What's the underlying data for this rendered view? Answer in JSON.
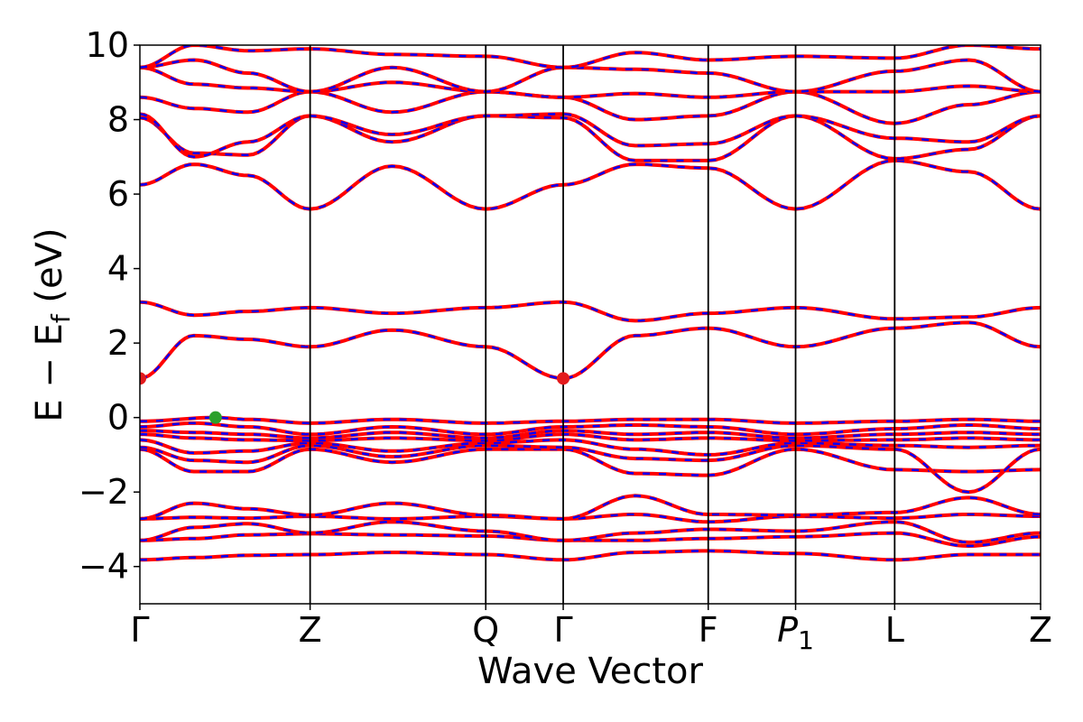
{
  "chart_data": {
    "type": "line",
    "title": "",
    "xlabel": "Wave Vector",
    "ylabel": "E − E_f (eV)",
    "ylabel_parts": {
      "main": "E − E",
      "sub": "f",
      "unit": " (eV)"
    },
    "ylim": [
      -5,
      10
    ],
    "yticks": [
      -4,
      -2,
      0,
      2,
      4,
      6,
      8,
      10
    ],
    "ytick_labels": [
      "−4",
      "−2",
      "0",
      "2",
      "4",
      "6",
      "8",
      "10"
    ],
    "grid": false,
    "legend": "none",
    "kpath": [
      {
        "label": "Γ",
        "x": 0.0
      },
      {
        "label": "Z",
        "x": 0.189
      },
      {
        "label": "Q",
        "x": 0.384
      },
      {
        "label": "Γ",
        "x": 0.47
      },
      {
        "label": "F",
        "x": 0.631
      },
      {
        "label": "P",
        "sub": "1",
        "x": 0.728
      },
      {
        "label": "L",
        "x": 0.838
      },
      {
        "label": "Z",
        "x": 1.0
      }
    ],
    "colors": {
      "band_outer": "#ff0000",
      "band_inner": "#0000ff",
      "cbm_marker": "#e31a1c",
      "vbm_marker": "#2ca02c",
      "frame": "#000000"
    },
    "markers": [
      {
        "name": "cbm",
        "x": 0.0,
        "y": 1.05,
        "color": "#e31a1c"
      },
      {
        "name": "cbm",
        "x": 0.47,
        "y": 1.05,
        "color": "#e31a1c"
      },
      {
        "name": "vbm",
        "x": 0.084,
        "y": 0.0,
        "color": "#2ca02c"
      }
    ],
    "series": [
      {
        "values": [
          [
            0,
            -3.82
          ],
          [
            0.06,
            -3.76
          ],
          [
            0.12,
            -3.7
          ],
          [
            0.189,
            -3.68
          ],
          [
            0.28,
            -3.62
          ],
          [
            0.384,
            -3.68
          ],
          [
            0.47,
            -3.82
          ],
          [
            0.55,
            -3.62
          ],
          [
            0.631,
            -3.58
          ],
          [
            0.728,
            -3.65
          ],
          [
            0.838,
            -3.82
          ],
          [
            0.92,
            -3.68
          ],
          [
            1.0,
            -3.68
          ]
        ]
      },
      {
        "values": [
          [
            0,
            -3.3
          ],
          [
            0.06,
            -3.25
          ],
          [
            0.12,
            -3.15
          ],
          [
            0.189,
            -3.12
          ],
          [
            0.28,
            -3.15
          ],
          [
            0.384,
            -3.18
          ],
          [
            0.47,
            -3.3
          ],
          [
            0.55,
            -3.3
          ],
          [
            0.631,
            -3.25
          ],
          [
            0.728,
            -3.2
          ],
          [
            0.838,
            -3.1
          ],
          [
            0.92,
            -3.45
          ],
          [
            1.0,
            -3.2
          ]
        ]
      },
      {
        "values": [
          [
            0,
            -3.3
          ],
          [
            0.06,
            -2.95
          ],
          [
            0.12,
            -2.85
          ],
          [
            0.189,
            -3.1
          ],
          [
            0.28,
            -2.8
          ],
          [
            0.384,
            -3.05
          ],
          [
            0.47,
            -3.3
          ],
          [
            0.55,
            -3.1
          ],
          [
            0.631,
            -3.0
          ],
          [
            0.728,
            -3.05
          ],
          [
            0.838,
            -2.8
          ],
          [
            0.92,
            -3.35
          ],
          [
            1.0,
            -3.1
          ]
        ]
      },
      {
        "values": [
          [
            0,
            -2.72
          ],
          [
            0.06,
            -2.68
          ],
          [
            0.12,
            -2.7
          ],
          [
            0.189,
            -2.65
          ],
          [
            0.28,
            -2.72
          ],
          [
            0.384,
            -2.65
          ],
          [
            0.47,
            -2.72
          ],
          [
            0.55,
            -2.6
          ],
          [
            0.631,
            -2.8
          ],
          [
            0.728,
            -2.65
          ],
          [
            0.838,
            -2.7
          ],
          [
            0.92,
            -2.6
          ],
          [
            1.0,
            -2.65
          ]
        ]
      },
      {
        "values": [
          [
            0,
            -2.72
          ],
          [
            0.06,
            -2.3
          ],
          [
            0.12,
            -2.45
          ],
          [
            0.189,
            -2.62
          ],
          [
            0.28,
            -2.3
          ],
          [
            0.384,
            -2.62
          ],
          [
            0.47,
            -2.72
          ],
          [
            0.55,
            -2.1
          ],
          [
            0.631,
            -2.6
          ],
          [
            0.728,
            -2.62
          ],
          [
            0.838,
            -2.55
          ],
          [
            0.92,
            -2.15
          ],
          [
            1.0,
            -2.6
          ]
        ]
      },
      {
        "values": [
          [
            0,
            -0.85
          ],
          [
            0.06,
            -1.45
          ],
          [
            0.12,
            -1.45
          ],
          [
            0.189,
            -0.85
          ],
          [
            0.28,
            -1.2
          ],
          [
            0.384,
            -0.85
          ],
          [
            0.47,
            -0.85
          ],
          [
            0.55,
            -1.5
          ],
          [
            0.631,
            -1.55
          ],
          [
            0.728,
            -0.85
          ],
          [
            0.838,
            -1.4
          ],
          [
            0.92,
            -1.45
          ],
          [
            1.0,
            -1.4
          ]
        ]
      },
      {
        "values": [
          [
            0,
            -0.8
          ],
          [
            0.06,
            -1.15
          ],
          [
            0.12,
            -1.2
          ],
          [
            0.189,
            -0.75
          ],
          [
            0.28,
            -1.05
          ],
          [
            0.384,
            -0.75
          ],
          [
            0.47,
            -0.8
          ],
          [
            0.55,
            -1.1
          ],
          [
            0.631,
            -1.15
          ],
          [
            0.728,
            -0.75
          ],
          [
            0.838,
            -0.85
          ],
          [
            0.92,
            -2.0
          ],
          [
            1.0,
            -0.85
          ]
        ]
      },
      {
        "values": [
          [
            0,
            -0.6
          ],
          [
            0.06,
            -0.95
          ],
          [
            0.12,
            -0.9
          ],
          [
            0.189,
            -0.68
          ],
          [
            0.28,
            -0.9
          ],
          [
            0.384,
            -0.68
          ],
          [
            0.47,
            -0.6
          ],
          [
            0.55,
            -0.85
          ],
          [
            0.631,
            -1.0
          ],
          [
            0.728,
            -0.68
          ],
          [
            0.838,
            -0.75
          ],
          [
            0.92,
            -0.8
          ],
          [
            1.0,
            -0.75
          ]
        ]
      },
      {
        "values": [
          [
            0,
            -0.45
          ],
          [
            0.06,
            -0.55
          ],
          [
            0.12,
            -0.6
          ],
          [
            0.189,
            -0.62
          ],
          [
            0.28,
            -0.55
          ],
          [
            0.384,
            -0.62
          ],
          [
            0.47,
            -0.45
          ],
          [
            0.55,
            -0.6
          ],
          [
            0.631,
            -0.55
          ],
          [
            0.728,
            -0.62
          ],
          [
            0.838,
            -0.6
          ],
          [
            0.92,
            -0.55
          ],
          [
            1.0,
            -0.6
          ]
        ]
      },
      {
        "values": [
          [
            0,
            -0.35
          ],
          [
            0.06,
            -0.4
          ],
          [
            0.12,
            -0.45
          ],
          [
            0.189,
            -0.55
          ],
          [
            0.28,
            -0.4
          ],
          [
            0.384,
            -0.55
          ],
          [
            0.47,
            -0.35
          ],
          [
            0.55,
            -0.45
          ],
          [
            0.631,
            -0.4
          ],
          [
            0.728,
            -0.55
          ],
          [
            0.838,
            -0.45
          ],
          [
            0.92,
            -0.4
          ],
          [
            1.0,
            -0.45
          ]
        ]
      },
      {
        "values": [
          [
            0,
            -0.25
          ],
          [
            0.06,
            -0.15
          ],
          [
            0.12,
            -0.25
          ],
          [
            0.189,
            -0.45
          ],
          [
            0.28,
            -0.25
          ],
          [
            0.384,
            -0.45
          ],
          [
            0.47,
            -0.25
          ],
          [
            0.55,
            -0.2
          ],
          [
            0.631,
            -0.25
          ],
          [
            0.728,
            -0.45
          ],
          [
            0.838,
            -0.3
          ],
          [
            0.92,
            -0.2
          ],
          [
            1.0,
            -0.3
          ]
        ]
      },
      {
        "values": [
          [
            0,
            -0.1
          ],
          [
            0.084,
            0.0
          ],
          [
            0.12,
            -0.05
          ],
          [
            0.189,
            -0.15
          ],
          [
            0.28,
            -0.05
          ],
          [
            0.384,
            -0.15
          ],
          [
            0.47,
            -0.1
          ],
          [
            0.55,
            -0.05
          ],
          [
            0.631,
            -0.05
          ],
          [
            0.728,
            -0.15
          ],
          [
            0.838,
            -0.1
          ],
          [
            0.92,
            -0.05
          ],
          [
            1.0,
            -0.1
          ]
        ]
      },
      {
        "values": [
          [
            0,
            1.05
          ],
          [
            0.06,
            2.2
          ],
          [
            0.12,
            2.1
          ],
          [
            0.189,
            1.9
          ],
          [
            0.28,
            2.35
          ],
          [
            0.384,
            1.9
          ],
          [
            0.47,
            1.05
          ],
          [
            0.55,
            2.2
          ],
          [
            0.631,
            2.4
          ],
          [
            0.728,
            1.9
          ],
          [
            0.838,
            2.4
          ],
          [
            0.92,
            2.55
          ],
          [
            1.0,
            1.9
          ]
        ]
      },
      {
        "values": [
          [
            0,
            3.1
          ],
          [
            0.06,
            2.75
          ],
          [
            0.12,
            2.85
          ],
          [
            0.189,
            2.95
          ],
          [
            0.28,
            2.8
          ],
          [
            0.384,
            2.95
          ],
          [
            0.47,
            3.1
          ],
          [
            0.55,
            2.6
          ],
          [
            0.631,
            2.8
          ],
          [
            0.728,
            2.95
          ],
          [
            0.838,
            2.65
          ],
          [
            0.92,
            2.7
          ],
          [
            1.0,
            2.95
          ]
        ]
      },
      {
        "values": [
          [
            0,
            6.25
          ],
          [
            0.06,
            6.8
          ],
          [
            0.12,
            6.5
          ],
          [
            0.189,
            5.6
          ],
          [
            0.28,
            6.75
          ],
          [
            0.384,
            5.6
          ],
          [
            0.47,
            6.25
          ],
          [
            0.55,
            6.8
          ],
          [
            0.631,
            6.7
          ],
          [
            0.728,
            5.6
          ],
          [
            0.838,
            6.9
          ],
          [
            0.92,
            6.6
          ],
          [
            1.0,
            5.6
          ]
        ]
      },
      {
        "values": [
          [
            0,
            8.05
          ],
          [
            0.06,
            7.1
          ],
          [
            0.12,
            7.05
          ],
          [
            0.189,
            8.1
          ],
          [
            0.28,
            7.4
          ],
          [
            0.384,
            8.1
          ],
          [
            0.47,
            8.05
          ],
          [
            0.55,
            6.9
          ],
          [
            0.631,
            6.9
          ],
          [
            0.728,
            8.1
          ],
          [
            0.838,
            6.95
          ],
          [
            0.92,
            7.2
          ],
          [
            1.0,
            8.1
          ]
        ]
      },
      {
        "values": [
          [
            0,
            8.15
          ],
          [
            0.06,
            7.0
          ],
          [
            0.12,
            7.4
          ],
          [
            0.189,
            8.1
          ],
          [
            0.28,
            7.6
          ],
          [
            0.384,
            8.1
          ],
          [
            0.47,
            8.15
          ],
          [
            0.55,
            7.3
          ],
          [
            0.631,
            7.35
          ],
          [
            0.728,
            8.1
          ],
          [
            0.838,
            7.5
          ],
          [
            0.92,
            7.4
          ],
          [
            1.0,
            8.1
          ]
        ]
      },
      {
        "values": [
          [
            0,
            8.6
          ],
          [
            0.06,
            8.3
          ],
          [
            0.12,
            8.2
          ],
          [
            0.189,
            8.75
          ],
          [
            0.28,
            8.2
          ],
          [
            0.384,
            8.75
          ],
          [
            0.47,
            8.6
          ],
          [
            0.55,
            8.0
          ],
          [
            0.631,
            8.1
          ],
          [
            0.728,
            8.75
          ],
          [
            0.838,
            7.9
          ],
          [
            0.92,
            8.4
          ],
          [
            1.0,
            8.75
          ]
        ]
      },
      {
        "values": [
          [
            0,
            9.4
          ],
          [
            0.06,
            8.95
          ],
          [
            0.12,
            8.85
          ],
          [
            0.189,
            8.75
          ],
          [
            0.28,
            9.0
          ],
          [
            0.384,
            8.75
          ],
          [
            0.47,
            8.6
          ],
          [
            0.55,
            8.7
          ],
          [
            0.631,
            8.6
          ],
          [
            0.728,
            8.75
          ],
          [
            0.838,
            8.75
          ],
          [
            0.92,
            8.9
          ],
          [
            1.0,
            8.75
          ]
        ]
      },
      {
        "values": [
          [
            0,
            9.4
          ],
          [
            0.06,
            9.6
          ],
          [
            0.12,
            9.25
          ],
          [
            0.189,
            8.75
          ],
          [
            0.28,
            9.4
          ],
          [
            0.384,
            8.75
          ],
          [
            0.47,
            9.4
          ],
          [
            0.55,
            9.35
          ],
          [
            0.631,
            9.25
          ],
          [
            0.728,
            8.75
          ],
          [
            0.838,
            9.3
          ],
          [
            0.92,
            9.6
          ],
          [
            1.0,
            8.75
          ]
        ]
      },
      {
        "values": [
          [
            0,
            9.4
          ],
          [
            0.06,
            10.0
          ],
          [
            0.12,
            9.85
          ],
          [
            0.189,
            9.9
          ],
          [
            0.28,
            9.75
          ],
          [
            0.384,
            9.7
          ],
          [
            0.47,
            9.4
          ],
          [
            0.55,
            9.8
          ],
          [
            0.631,
            9.6
          ],
          [
            0.728,
            9.7
          ],
          [
            0.838,
            9.65
          ],
          [
            0.92,
            10.0
          ],
          [
            1.0,
            9.9
          ]
        ]
      }
    ]
  }
}
